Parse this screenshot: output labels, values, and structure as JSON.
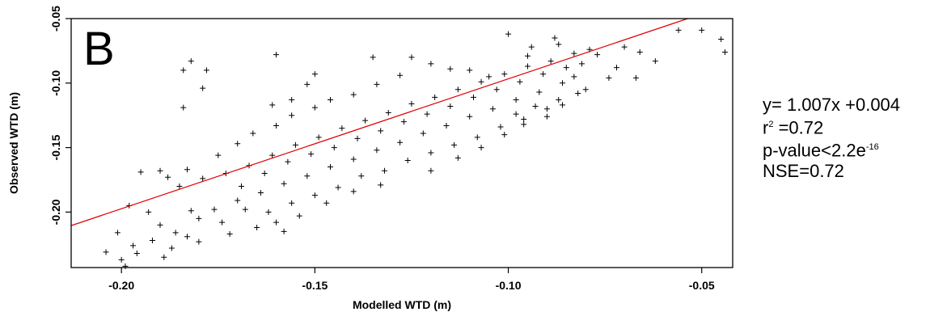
{
  "chart_data": {
    "type": "scatter",
    "panel_label": "B",
    "xlabel": "Modelled  WTD (m)",
    "ylabel": "Observed  WTD (m)",
    "xlim": [
      -0.213,
      -0.042
    ],
    "ylim": [
      -0.243,
      -0.05
    ],
    "xticks": [
      -0.2,
      -0.15,
      -0.1,
      -0.05
    ],
    "xtick_labels": [
      "-0.20",
      "-0.15",
      "-0.10",
      "-0.05"
    ],
    "yticks": [
      -0.2,
      -0.15,
      -0.1,
      -0.05
    ],
    "ytick_labels": [
      "-0.20",
      "-0.15",
      "-0.10",
      "-0.05"
    ],
    "grid": false,
    "marker": "+",
    "point_color": "#000000",
    "fit_line": {
      "slope": 1.007,
      "intercept": 0.004,
      "color": "#e00000"
    },
    "points": [
      [
        -0.182,
        -0.083
      ],
      [
        -0.178,
        -0.09
      ],
      [
        -0.184,
        -0.09
      ],
      [
        -0.16,
        -0.078
      ],
      [
        -0.152,
        -0.101
      ],
      [
        -0.179,
        -0.104
      ],
      [
        -0.184,
        -0.119
      ],
      [
        -0.161,
        -0.117
      ],
      [
        -0.156,
        -0.113
      ],
      [
        -0.15,
        -0.093
      ],
      [
        -0.1,
        -0.062
      ],
      [
        -0.088,
        -0.065
      ],
      [
        -0.056,
        -0.059
      ],
      [
        -0.05,
        -0.059
      ],
      [
        -0.045,
        -0.066
      ],
      [
        -0.044,
        -0.076
      ],
      [
        -0.062,
        -0.083
      ],
      [
        -0.067,
        -0.096
      ],
      [
        -0.074,
        -0.096
      ],
      [
        -0.083,
        -0.095
      ],
      [
        -0.135,
        -0.08
      ],
      [
        -0.125,
        -0.08
      ],
      [
        -0.12,
        -0.085
      ],
      [
        -0.115,
        -0.089
      ],
      [
        -0.095,
        -0.079
      ],
      [
        -0.19,
        -0.168
      ],
      [
        -0.195,
        -0.169
      ],
      [
        -0.204,
        -0.231
      ],
      [
        -0.2,
        -0.237
      ],
      [
        -0.199,
        -0.242
      ],
      [
        -0.196,
        -0.232
      ],
      [
        -0.189,
        -0.235
      ],
      [
        -0.18,
        -0.223
      ],
      [
        -0.172,
        -0.217
      ],
      [
        -0.158,
        -0.215
      ],
      [
        -0.154,
        -0.203
      ],
      [
        -0.147,
        -0.193
      ],
      [
        -0.14,
        -0.184
      ],
      [
        -0.133,
        -0.179
      ],
      [
        -0.12,
        -0.168
      ],
      [
        -0.113,
        -0.158
      ],
      [
        -0.107,
        -0.15
      ],
      [
        -0.101,
        -0.14
      ],
      [
        -0.096,
        -0.132
      ],
      [
        -0.09,
        -0.126
      ],
      [
        -0.086,
        -0.117
      ],
      [
        -0.082,
        -0.108
      ],
      [
        -0.188,
        -0.173
      ],
      [
        -0.183,
        -0.167
      ],
      [
        -0.175,
        -0.156
      ],
      [
        -0.17,
        -0.147
      ],
      [
        -0.166,
        -0.139
      ],
      [
        -0.16,
        -0.133
      ],
      [
        -0.156,
        -0.125
      ],
      [
        -0.15,
        -0.119
      ],
      [
        -0.146,
        -0.113
      ],
      [
        -0.14,
        -0.109
      ],
      [
        -0.134,
        -0.101
      ],
      [
        -0.128,
        -0.094
      ],
      [
        -0.11,
        -0.09
      ],
      [
        -0.105,
        -0.095
      ],
      [
        -0.079,
        -0.074
      ],
      [
        -0.077,
        -0.078
      ],
      [
        -0.07,
        -0.072
      ],
      [
        -0.066,
        -0.076
      ],
      [
        -0.072,
        -0.088
      ],
      [
        -0.08,
        -0.105
      ],
      [
        -0.087,
        -0.113
      ],
      [
        -0.093,
        -0.118
      ],
      [
        -0.098,
        -0.124
      ],
      [
        -0.182,
        -0.199
      ],
      [
        -0.176,
        -0.198
      ],
      [
        -0.17,
        -0.191
      ],
      [
        -0.164,
        -0.185
      ],
      [
        -0.158,
        -0.178
      ],
      [
        -0.152,
        -0.172
      ],
      [
        -0.146,
        -0.165
      ],
      [
        -0.14,
        -0.159
      ],
      [
        -0.134,
        -0.152
      ],
      [
        -0.128,
        -0.146
      ],
      [
        -0.122,
        -0.139
      ],
      [
        -0.116,
        -0.133
      ],
      [
        -0.11,
        -0.126
      ],
      [
        -0.104,
        -0.12
      ],
      [
        -0.098,
        -0.113
      ],
      [
        -0.092,
        -0.107
      ],
      [
        -0.086,
        -0.1
      ],
      [
        -0.19,
        -0.21
      ],
      [
        -0.186,
        -0.216
      ],
      [
        -0.18,
        -0.205
      ],
      [
        -0.174,
        -0.208
      ],
      [
        -0.168,
        -0.198
      ],
      [
        -0.162,
        -0.2
      ],
      [
        -0.156,
        -0.193
      ],
      [
        -0.15,
        -0.187
      ],
      [
        -0.144,
        -0.181
      ],
      [
        -0.138,
        -0.172
      ],
      [
        -0.132,
        -0.168
      ],
      [
        -0.126,
        -0.16
      ],
      [
        -0.12,
        -0.154
      ],
      [
        -0.114,
        -0.148
      ],
      [
        -0.108,
        -0.142
      ],
      [
        -0.102,
        -0.134
      ],
      [
        -0.096,
        -0.128
      ],
      [
        -0.09,
        -0.12
      ],
      [
        -0.185,
        -0.18
      ],
      [
        -0.179,
        -0.174
      ],
      [
        -0.173,
        -0.17
      ],
      [
        -0.167,
        -0.164
      ],
      [
        -0.161,
        -0.156
      ],
      [
        -0.155,
        -0.148
      ],
      [
        -0.149,
        -0.142
      ],
      [
        -0.143,
        -0.135
      ],
      [
        -0.137,
        -0.129
      ],
      [
        -0.131,
        -0.123
      ],
      [
        -0.125,
        -0.116
      ],
      [
        -0.119,
        -0.111
      ],
      [
        -0.113,
        -0.105
      ],
      [
        -0.107,
        -0.099
      ],
      [
        -0.101,
        -0.093
      ],
      [
        -0.095,
        -0.087
      ],
      [
        -0.089,
        -0.083
      ],
      [
        -0.083,
        -0.077
      ],
      [
        -0.087,
        -0.07
      ],
      [
        -0.094,
        -0.072
      ],
      [
        -0.192,
        -0.222
      ],
      [
        -0.187,
        -0.228
      ],
      [
        -0.183,
        -0.219
      ],
      [
        -0.197,
        -0.226
      ],
      [
        -0.193,
        -0.2
      ],
      [
        -0.198,
        -0.195
      ],
      [
        -0.201,
        -0.216
      ],
      [
        -0.165,
        -0.212
      ],
      [
        -0.16,
        -0.208
      ],
      [
        -0.169,
        -0.18
      ],
      [
        -0.163,
        -0.17
      ],
      [
        -0.157,
        -0.161
      ],
      [
        -0.151,
        -0.155
      ],
      [
        -0.145,
        -0.15
      ],
      [
        -0.139,
        -0.143
      ],
      [
        -0.133,
        -0.137
      ],
      [
        -0.127,
        -0.13
      ],
      [
        -0.121,
        -0.124
      ],
      [
        -0.115,
        -0.118
      ],
      [
        -0.109,
        -0.111
      ],
      [
        -0.103,
        -0.105
      ],
      [
        -0.097,
        -0.099
      ],
      [
        -0.091,
        -0.093
      ],
      [
        -0.085,
        -0.088
      ],
      [
        -0.081,
        -0.085
      ]
    ],
    "annotations": [
      {
        "base": "y= 1.007x +0.004",
        "sup": ""
      },
      {
        "base": "r",
        "sup": "2",
        "tail": " =0.72"
      },
      {
        "base": "p-value<2.2e",
        "sup": "-16",
        "tail": ""
      },
      {
        "base": "NSE=0.72",
        "sup": "",
        "tail": ""
      }
    ]
  }
}
